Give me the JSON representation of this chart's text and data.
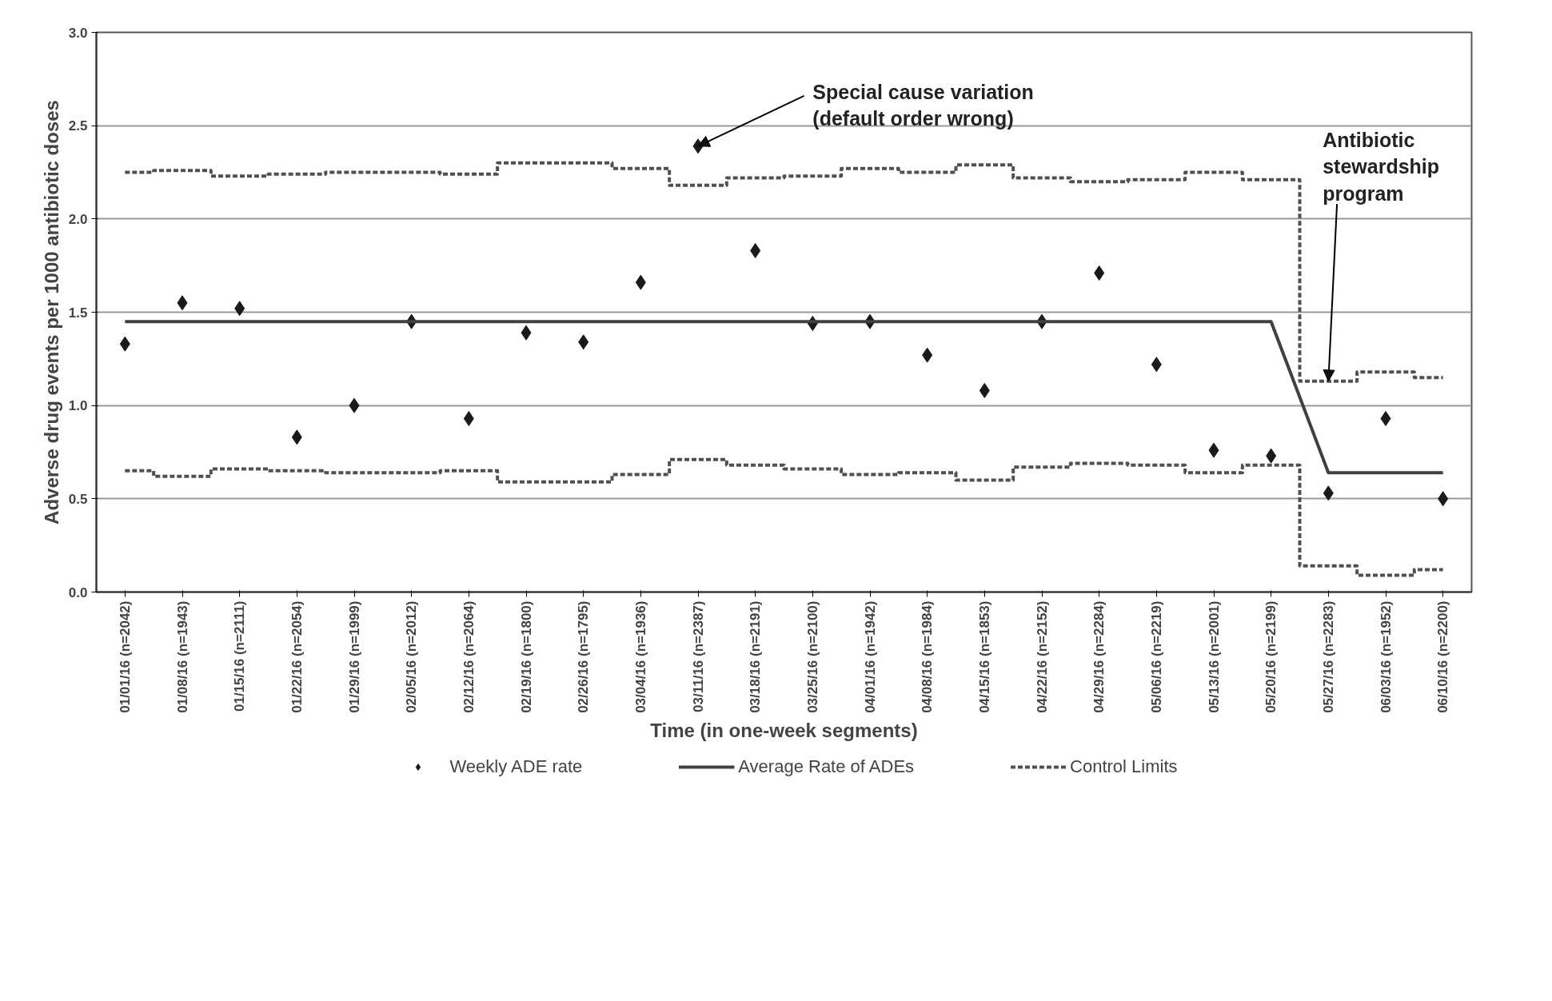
{
  "chart_data": {
    "type": "scatter",
    "xlabel": "Time (in one-week segments)",
    "ylabel": "Adverse drug events per 1000 antibiotic doses",
    "categories": [
      "01/01/16 (n=2042)",
      "01/08/16 (n=1943)",
      "01/15/16 (n=2111)",
      "01/22/16 (n=2054)",
      "01/29/16 (n=1999)",
      "02/05/16 (n=2012)",
      "02/12/16 (n=2064)",
      "02/19/16 (n=1800)",
      "02/26/16 (n=1795)",
      "03/04/16 (n=1936)",
      "03/11/16 (n=2387)",
      "03/18/16 (n=2191)",
      "03/25/16 (n=2100)",
      "04/01/16 (n=1942)",
      "04/08/16 (n=1984)",
      "04/15/16 (n=1853)",
      "04/22/16 (n=2152)",
      "04/29/16 (n=2284)",
      "05/06/16 (n=2219)",
      "05/13/16 (n=2001)",
      "05/20/16 (n=2199)",
      "05/27/16 (n=2283)",
      "06/03/16 (n=1952)",
      "06/10/16 (n=2200)"
    ],
    "series": [
      {
        "name": "Weekly ADE rate",
        "marker": "diamond",
        "color": "#1a1a1a",
        "values": [
          1.33,
          1.55,
          1.52,
          0.83,
          1.0,
          1.45,
          0.93,
          1.39,
          1.34,
          1.66,
          2.39,
          1.83,
          1.44,
          1.45,
          1.27,
          1.08,
          1.45,
          1.71,
          1.22,
          0.76,
          0.73,
          0.53,
          0.93,
          0.5
        ]
      },
      {
        "name": "Average Rate of ADEs",
        "type": "line",
        "line_style": "solid",
        "color": "#404040",
        "values": [
          1.45,
          1.45,
          1.45,
          1.45,
          1.45,
          1.45,
          1.45,
          1.45,
          1.45,
          1.45,
          1.45,
          1.45,
          1.45,
          1.45,
          1.45,
          1.45,
          1.45,
          1.45,
          1.45,
          1.45,
          1.45,
          0.64,
          0.64,
          0.64
        ]
      },
      {
        "name": "Control Limits",
        "type": "step",
        "line_style": "dashed",
        "color": "#505050",
        "values": [
          2.25,
          2.26,
          2.23,
          2.24,
          2.25,
          2.25,
          2.24,
          2.3,
          2.3,
          2.27,
          2.18,
          2.22,
          2.23,
          2.27,
          2.25,
          2.29,
          2.22,
          2.2,
          2.21,
          2.25,
          2.21,
          1.13,
          1.18,
          1.15
        ]
      },
      {
        "type": "step",
        "line_style": "dashed",
        "color": "#505050",
        "values": [
          0.65,
          0.62,
          0.66,
          0.65,
          0.64,
          0.64,
          0.65,
          0.59,
          0.59,
          0.63,
          0.71,
          0.68,
          0.66,
          0.63,
          0.64,
          0.6,
          0.67,
          0.69,
          0.68,
          0.64,
          0.68,
          0.14,
          0.09,
          0.12
        ]
      }
    ],
    "ylim": [
      0,
      3
    ],
    "yticks": [
      {
        "value": 0,
        "label": "0.0"
      },
      {
        "value": 0.5,
        "label": "0.5"
      },
      {
        "value": 1,
        "label": "1.0"
      },
      {
        "value": 1.5,
        "label": "1.5"
      },
      {
        "value": 2,
        "label": "2.0"
      },
      {
        "value": 2.5,
        "label": "2.5"
      },
      {
        "value": 3,
        "label": "3.0"
      }
    ],
    "grid": "y",
    "legend": "bottom",
    "annotations": [
      {
        "text": "Special cause variation\n(default order wrong)",
        "x": "03/11/16 (n=2387)",
        "y": 2.39
      },
      {
        "text": "Antibiotic\nstewardship\nprogram",
        "x": "05/27/16 (n=2283)",
        "y": 1.13
      }
    ]
  }
}
